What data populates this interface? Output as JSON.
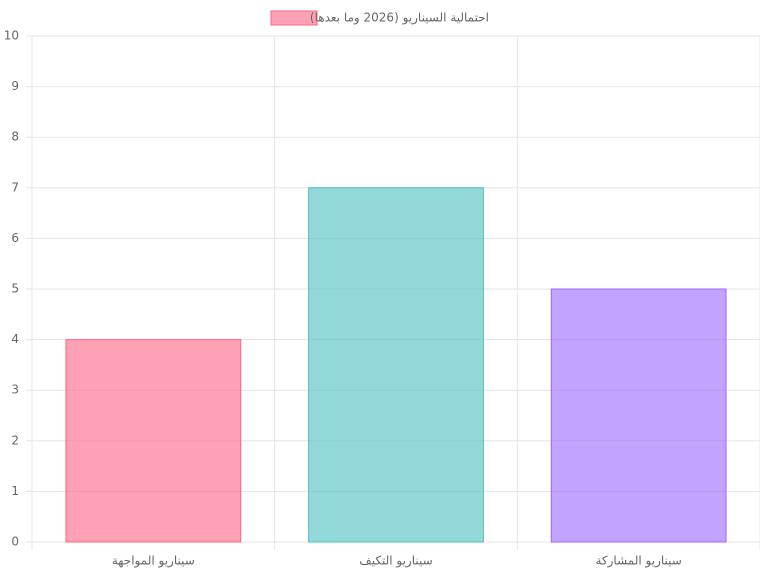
{
  "chart_data": {
    "type": "bar",
    "categories": [
      "سيناريو المواجهة",
      "سيناريو التكيف",
      "سيناريو المشاركة"
    ],
    "series": [
      {
        "name": "احتمالية السيناريو (2026 وما بعدها)",
        "colors": [
          "#ff6384",
          "#4bc0c0",
          "#9966ff"
        ],
        "values": [
          4,
          7,
          5
        ]
      }
    ],
    "ylim": [
      0,
      10
    ],
    "yticks": [
      0,
      1,
      2,
      3,
      4,
      5,
      6,
      7,
      8,
      9,
      10
    ],
    "grid": true,
    "legend": "top"
  }
}
